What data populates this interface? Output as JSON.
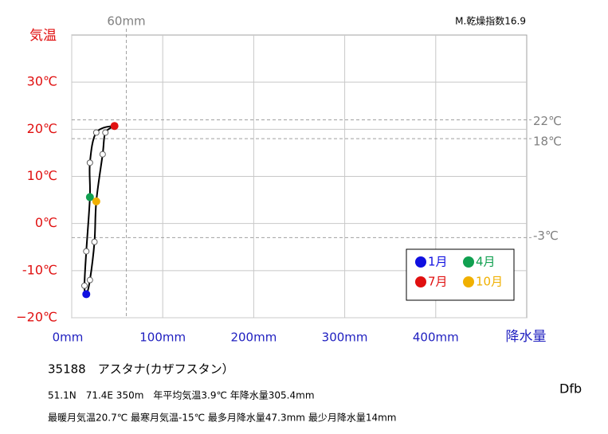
{
  "chart_data": {
    "type": "climograph",
    "corner_note": "M.乾燥指数16.9",
    "y_title": "気温",
    "x_title": "降水量",
    "x": [
      16,
      14,
      16,
      20,
      20,
      27,
      47,
      37,
      34,
      27,
      25,
      20
    ],
    "values": [
      -15,
      -13.2,
      -5.9,
      5.6,
      12.9,
      19.3,
      20.7,
      19.3,
      14.7,
      4.7,
      -3.9,
      -12
    ],
    "point_colors": [
      "#1010e0",
      null,
      null,
      "#10a050",
      null,
      null,
      "#e01010",
      null,
      null,
      "#f0b000",
      null,
      null
    ],
    "line_color": "#000000",
    "xlim": [
      0,
      500
    ],
    "ylim": [
      -20,
      40
    ],
    "xticks": [
      {
        "value": 0,
        "label": "0mm"
      },
      {
        "value": 100,
        "label": "100mm"
      },
      {
        "value": 200,
        "label": "200mm"
      },
      {
        "value": 300,
        "label": "300mm"
      },
      {
        "value": 400,
        "label": "400mm"
      }
    ],
    "yticks": [
      {
        "value": -20,
        "label": "−20℃"
      },
      {
        "value": -10,
        "label": "-10℃"
      },
      {
        "value": 0,
        "label": "0℃"
      },
      {
        "value": 10,
        "label": "10℃"
      },
      {
        "value": 20,
        "label": "20℃"
      },
      {
        "value": 30,
        "label": "30℃"
      }
    ],
    "grid": true,
    "ref_lines": {
      "x": [
        {
          "value": 60,
          "label": "60mm"
        }
      ],
      "y": [
        {
          "value": 22,
          "label": "22℃"
        },
        {
          "value": 18,
          "label": "18℃"
        },
        {
          "value": -3,
          "label": "-3℃"
        }
      ]
    },
    "legend": [
      {
        "label": "1月",
        "color": "#1010e0"
      },
      {
        "label": "4月",
        "color": "#10a050"
      },
      {
        "label": "7月",
        "color": "#e01010"
      },
      {
        "label": "10月",
        "color": "#f0b000"
      }
    ],
    "station": "35188　アスタナ(カザフスタン）",
    "info1": "51.1N　71.4E 350m　年平均気温3.9℃ 年降水量305.4mm",
    "info2": "最暖月気温20.7℃ 最寒月気温-15℃ 最多月降水量47.3mm 最少月降水量14mm",
    "climate": "Dfb"
  }
}
